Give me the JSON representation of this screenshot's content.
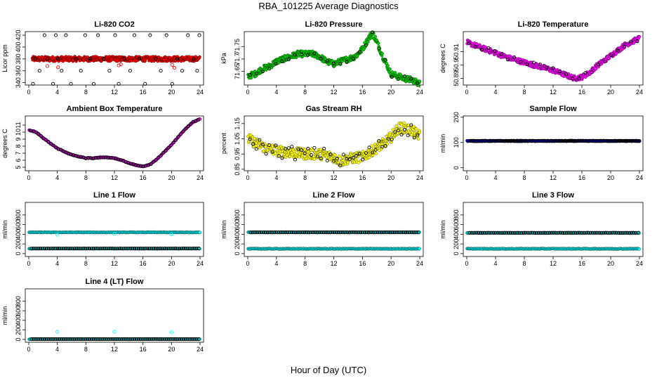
{
  "figure": {
    "title": "RBA_101225  Average Diagnostics",
    "xlabel": "Hour of Day (UTC)"
  },
  "chart_data": [
    {
      "type": "scatter",
      "title": "Li-820 CO2",
      "ylabel": "Licor ppm",
      "xlim": [
        0,
        24
      ],
      "xticks": [
        0,
        4,
        8,
        12,
        16,
        20,
        24
      ],
      "ylim": [
        336,
        426
      ],
      "yticks": [
        340,
        360,
        380,
        400,
        420
      ],
      "series": [
        {
          "color": "#ff0000",
          "filled": true,
          "kind": "band",
          "min": 376,
          "max": 384,
          "x": [
            0.5,
            24
          ]
        },
        {
          "color": "#000000",
          "filled": false,
          "kind": "points",
          "x": [
            0.6,
            0.9,
            1.5,
            2.2,
            2.6,
            3.4,
            3.8,
            4.1,
            4.6,
            5.2,
            5.9,
            6.6,
            7.3,
            7.9,
            8.6,
            9.1,
            9.7,
            10.5,
            11.3,
            12.1,
            12.6,
            13.4,
            14.2,
            14.8,
            15.5,
            16.3,
            17.0,
            17.8,
            18.5,
            19.3,
            20.1,
            20.8,
            21.5,
            22.3,
            23.1,
            23.6,
            23.9
          ],
          "y": [
            338,
            380,
            360,
            420,
            380,
            338,
            420,
            380,
            360,
            420,
            338,
            380,
            360,
            420,
            380,
            338,
            420,
            380,
            360,
            420,
            338,
            380,
            360,
            420,
            380,
            338,
            420,
            380,
            360,
            420,
            338,
            380,
            360,
            420,
            380,
            360,
            420
          ]
        },
        {
          "color": "#ff0000",
          "filled": false,
          "kind": "points",
          "x": [
            2.6,
            4.1,
            12.6,
            12.9,
            20.1,
            20.4
          ],
          "y": [
            368,
            366,
            369,
            371,
            370,
            365
          ]
        }
      ]
    },
    {
      "type": "scatter",
      "title": "Li-820 Pressure",
      "ylabel": "kPa",
      "xlim": [
        0,
        24
      ],
      "xticks": [
        0,
        4,
        8,
        12,
        16,
        20,
        24
      ],
      "ylim": [
        71.595,
        71.81
      ],
      "yticks": [
        71.65,
        71.7,
        71.75
      ],
      "series": [
        {
          "color": "#00cc00",
          "filled": true,
          "kind": "curve",
          "spread": 0.012,
          "x": [
            0,
            1,
            2,
            3,
            4,
            5,
            6,
            7,
            8,
            9,
            10,
            11,
            12,
            13,
            14,
            15,
            16,
            17,
            17.5,
            18,
            19,
            20,
            21,
            22,
            23,
            24
          ],
          "y": [
            71.63,
            71.64,
            71.66,
            71.67,
            71.69,
            71.7,
            71.71,
            71.72,
            71.72,
            71.72,
            71.71,
            71.69,
            71.68,
            71.69,
            71.7,
            71.71,
            71.74,
            71.79,
            71.8,
            71.77,
            71.7,
            71.64,
            71.63,
            71.62,
            71.615,
            71.6
          ]
        },
        {
          "color": "#000000",
          "filled": false,
          "kind": "curve-sample",
          "every": 0.9
        }
      ]
    },
    {
      "type": "scatter",
      "title": "Li-820 Temperature",
      "ylabel": "degrees C",
      "xlim": [
        0,
        24
      ],
      "xticks": [
        0,
        4,
        8,
        12,
        16,
        20,
        24
      ],
      "ylim": [
        50.885,
        50.925
      ],
      "yticks": [
        50.89,
        50.9,
        50.91
      ],
      "series": [
        {
          "color": "#ff00ff",
          "filled": true,
          "kind": "curve",
          "spread": 0.0018,
          "x": [
            0,
            2,
            4,
            6,
            8,
            10,
            12,
            14,
            15,
            16,
            17,
            18,
            20,
            22,
            24
          ],
          "y": [
            50.917,
            50.913,
            50.909,
            50.905,
            50.902,
            50.899,
            50.896,
            50.892,
            50.89,
            50.891,
            50.894,
            50.899,
            50.907,
            50.915,
            50.92
          ]
        },
        {
          "color": "#000000",
          "filled": false,
          "kind": "curve-sample",
          "every": 0.9
        }
      ]
    },
    {
      "type": "scatter",
      "title": "Ambient Box Temperature",
      "ylabel": "degrees C",
      "xlim": [
        0,
        24
      ],
      "xticks": [
        0,
        4,
        8,
        12,
        16,
        20,
        24
      ],
      "ylim": [
        4.5,
        12.3
      ],
      "yticks": [
        5,
        6,
        7,
        8,
        9,
        10,
        11
      ],
      "series": [
        {
          "color": "#ff00ff",
          "filled": true,
          "kind": "curve",
          "spread": 0.05,
          "x": [
            0,
            1,
            2,
            3,
            4,
            5,
            6,
            7,
            8,
            9,
            10,
            11,
            12,
            13,
            14,
            15,
            16,
            17,
            18,
            19,
            20,
            21,
            22,
            23,
            24
          ],
          "y": [
            10.3,
            10,
            9.2,
            8.4,
            7.7,
            7.2,
            6.8,
            6.5,
            6.3,
            6.3,
            6.4,
            6.4,
            6.3,
            6.0,
            5.6,
            5.3,
            5.1,
            5.4,
            6.2,
            7.2,
            8.2,
            9.4,
            10.5,
            11.4,
            11.9
          ]
        },
        {
          "color": "#000000",
          "filled": false,
          "kind": "curve-sample",
          "every": 0.35
        }
      ]
    },
    {
      "type": "scatter",
      "title": "Gas Stream RH",
      "ylabel": "percent",
      "xlim": [
        0,
        24
      ],
      "xticks": [
        0,
        4,
        8,
        12,
        16,
        20,
        24
      ],
      "ylim": [
        0.84,
        1.2
      ],
      "yticks": [
        0.85,
        0.95,
        1.05,
        1.15
      ],
      "series": [
        {
          "color": "#ffff00",
          "filled": true,
          "kind": "curve",
          "spread": 0.035,
          "x": [
            0,
            2,
            4,
            6,
            8,
            10,
            12,
            13,
            14,
            16,
            17,
            18,
            19,
            20,
            21,
            22,
            23,
            24
          ],
          "y": [
            1.05,
            1.0,
            0.97,
            0.96,
            0.95,
            0.95,
            0.93,
            0.9,
            0.92,
            0.93,
            0.96,
            0.99,
            1.02,
            1.06,
            1.12,
            1.12,
            1.1,
            1.07
          ]
        },
        {
          "color": "#000000",
          "filled": false,
          "kind": "curve-sample",
          "every": 0.45,
          "spread": 0.045
        }
      ]
    },
    {
      "type": "scatter",
      "title": "Sample Flow",
      "ylabel": "ml/min",
      "xlim": [
        0,
        24
      ],
      "xticks": [
        0,
        4,
        8,
        12,
        16,
        20,
        24
      ],
      "ylim": [
        -12,
        205
      ],
      "yticks": [
        0,
        100,
        200
      ],
      "series": [
        {
          "color": "#0000cc",
          "filled": true,
          "kind": "flat",
          "y": 106,
          "spread": 2
        },
        {
          "color": "#000000",
          "filled": false,
          "kind": "flat-sample",
          "y": 106,
          "every": 0.2
        }
      ]
    },
    {
      "type": "scatter",
      "title": "Line 1 Flow",
      "ylabel": "ml/min",
      "xlim": [
        0,
        24
      ],
      "xticks": [
        0,
        4,
        8,
        12,
        16,
        20,
        24
      ],
      "ylim": [
        -60,
        1060
      ],
      "yticks": [
        0,
        200,
        400,
        600,
        800
      ],
      "series": [
        {
          "color": "#00ffff",
          "filled": true,
          "kind": "flat",
          "y": 440,
          "spread": 6
        },
        {
          "color": "#00ffff",
          "filled": true,
          "kind": "flat",
          "y": 105,
          "spread": 6
        },
        {
          "color": "#000000",
          "filled": false,
          "kind": "flat-sample",
          "y": 105,
          "every": 0.3
        },
        {
          "color": "#00ffff",
          "filled": false,
          "kind": "points",
          "x": [
            4,
            12,
            20
          ],
          "y": [
            390,
            410,
            395
          ]
        }
      ]
    },
    {
      "type": "scatter",
      "title": "Line 2 Flow",
      "ylabel": "ml/min",
      "xlim": [
        0,
        24
      ],
      "xticks": [
        0,
        4,
        8,
        12,
        16,
        20,
        24
      ],
      "ylim": [
        -60,
        1060
      ],
      "yticks": [
        0,
        200,
        400,
        600,
        800
      ],
      "series": [
        {
          "color": "#00ffff",
          "filled": true,
          "kind": "flat",
          "y": 440,
          "spread": 6
        },
        {
          "color": "#00ffff",
          "filled": true,
          "kind": "flat",
          "y": 100,
          "spread": 6
        },
        {
          "color": "#000000",
          "filled": false,
          "kind": "flat-sample",
          "y": 440,
          "every": 0.3
        }
      ]
    },
    {
      "type": "scatter",
      "title": "Line 3 Flow",
      "ylabel": "ml/min",
      "xlim": [
        0,
        24
      ],
      "xticks": [
        0,
        4,
        8,
        12,
        16,
        20,
        24
      ],
      "ylim": [
        -60,
        1060
      ],
      "yticks": [
        0,
        200,
        400,
        600,
        800
      ],
      "series": [
        {
          "color": "#00ffff",
          "filled": true,
          "kind": "flat",
          "y": 430,
          "spread": 6
        },
        {
          "color": "#00ffff",
          "filled": true,
          "kind": "flat",
          "y": 100,
          "spread": 6
        },
        {
          "color": "#000000",
          "filled": false,
          "kind": "flat-sample",
          "y": 430,
          "every": 0.3
        }
      ]
    },
    {
      "type": "scatter",
      "title": "Line 4 (LT) Flow",
      "ylabel": "ml/min",
      "xlim": [
        0,
        24
      ],
      "xticks": [
        0,
        4,
        8,
        12,
        16,
        20,
        24
      ],
      "ylim": [
        -60,
        1060
      ],
      "yticks": [
        0,
        200,
        400,
        600,
        800
      ],
      "series": [
        {
          "color": "#00ffff",
          "filled": true,
          "kind": "flat",
          "y": 5,
          "spread": 4
        },
        {
          "color": "#000000",
          "filled": false,
          "kind": "flat-sample",
          "y": 5,
          "every": 0.3
        },
        {
          "color": "#00ffff",
          "filled": false,
          "kind": "points",
          "x": [
            4,
            12,
            20
          ],
          "y": [
            160,
            160,
            150
          ]
        }
      ]
    }
  ]
}
